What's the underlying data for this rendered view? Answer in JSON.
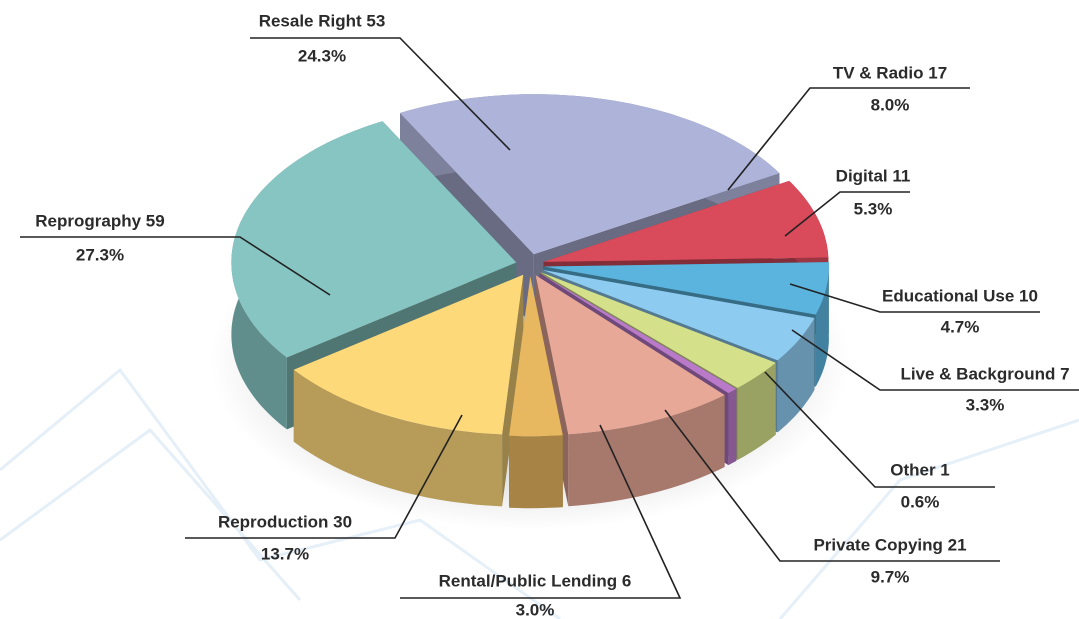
{
  "chart_data": {
    "type": "pie",
    "categories": [
      "Resale Right 53",
      "TV & Radio 17",
      "Digital 11",
      "Educational Use 10",
      "Live & Background 7",
      "Other 1",
      "Private Copying 21",
      "Rental/Public Lending 6",
      "Reproduction 30",
      "Reprography 59"
    ],
    "values": [
      24.3,
      8.0,
      5.3,
      4.7,
      3.3,
      0.6,
      9.7,
      3.0,
      13.7,
      27.3
    ],
    "value_labels": [
      "24.3%",
      "8.0%",
      "5.3%",
      "4.7%",
      "3.3%",
      "0.6%",
      "9.7%",
      "3.0%",
      "13.7%",
      "27.3%"
    ],
    "colors": [
      "#adb3d9",
      "#d94b5b",
      "#5bb4de",
      "#8ecbf0",
      "#d4e08a",
      "#b97ac9",
      "#e8a898",
      "#e8b860",
      "#fdd97a",
      "#86c5c2"
    ]
  }
}
